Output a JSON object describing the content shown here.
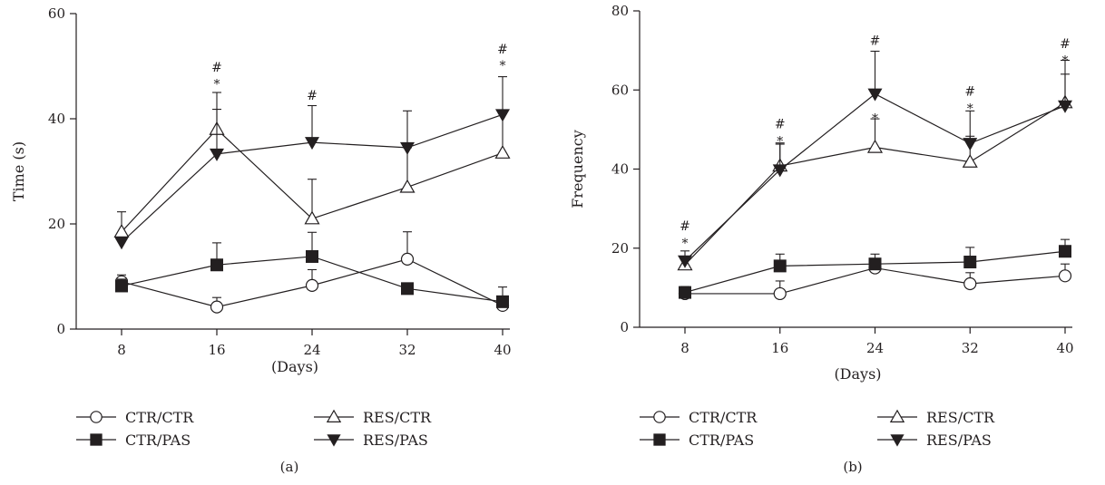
{
  "panels": [
    {
      "panel_label": "(a)",
      "legend": [
        "CTR/CTR",
        "CTR/PAS",
        "RES/CTR",
        "RES/PAS"
      ]
    },
    {
      "panel_label": "(b)",
      "legend": [
        "CTR/CTR",
        "CTR/PAS",
        "RES/CTR",
        "RES/PAS"
      ]
    }
  ],
  "chart_data": [
    {
      "type": "line",
      "panel": "(a)",
      "xlabel": "(Days)",
      "ylabel": "Time (s)",
      "x": [
        8,
        16,
        24,
        32,
        40
      ],
      "xticks": [
        "8",
        "16",
        "24",
        "32",
        "40"
      ],
      "ylim": [
        0,
        60
      ],
      "yticks": [
        "0",
        "20",
        "40",
        "60"
      ],
      "series": [
        {
          "name": "CTR/CTR",
          "marker": "open-circle",
          "values": [
            9,
            4.2,
            8.3,
            13.3,
            4.5
          ],
          "error": [
            1.3,
            1.8,
            3,
            5.2,
            1.5
          ]
        },
        {
          "name": "CTR/PAS",
          "marker": "filled-square",
          "values": [
            8.2,
            12.2,
            13.8,
            7.7,
            5.2
          ],
          "error": [
            1.3,
            4.2,
            4.6,
            0,
            2.8
          ]
        },
        {
          "name": "RES/CTR",
          "marker": "open-triangle-up",
          "values": [
            18.5,
            38,
            21,
            27,
            33.5
          ],
          "error": [
            3.8,
            3.8,
            7.5,
            7.5,
            7.5
          ]
        },
        {
          "name": "RES/PAS",
          "marker": "filled-triangle-down",
          "values": [
            16.5,
            33.3,
            35.5,
            34.5,
            40.8
          ],
          "error": [
            0,
            11.7,
            7,
            7,
            7.2
          ]
        }
      ],
      "annotations": [
        {
          "x": 16,
          "text": "*",
          "y": 47.5
        },
        {
          "x": 16,
          "text": "#",
          "y": 49.8
        },
        {
          "x": 24,
          "text": "#",
          "y": 44.5
        },
        {
          "x": 40,
          "text": "*",
          "y": 51
        },
        {
          "x": 40,
          "text": "#",
          "y": 53.3
        }
      ]
    },
    {
      "type": "line",
      "panel": "(b)",
      "xlabel": "(Days)",
      "ylabel": "Frequency",
      "x": [
        8,
        16,
        24,
        32,
        40
      ],
      "xticks": [
        "8",
        "16",
        "24",
        "32",
        "40"
      ],
      "ylim": [
        0,
        80
      ],
      "yticks": [
        "0",
        "20",
        "40",
        "60",
        "80"
      ],
      "series": [
        {
          "name": "CTR/CTR",
          "marker": "open-circle",
          "values": [
            8.5,
            8.5,
            15,
            11,
            13
          ],
          "error": [
            1.5,
            3.2,
            1.5,
            2.8,
            3
          ]
        },
        {
          "name": "CTR/PAS",
          "marker": "filled-square",
          "values": [
            8.8,
            15.5,
            16,
            16.5,
            19.2
          ],
          "error": [
            1.5,
            3,
            2.5,
            3.7,
            3
          ]
        },
        {
          "name": "RES/CTR",
          "marker": "open-triangle-up",
          "values": [
            15.8,
            40.8,
            45.5,
            41.8,
            56.8
          ],
          "error": [
            1.5,
            5.8,
            7.2,
            6.5,
            7.2
          ]
        },
        {
          "name": "RES/PAS",
          "marker": "filled-triangle-down",
          "values": [
            16.8,
            39.8,
            59,
            46.5,
            56
          ],
          "error": [
            2.5,
            6.5,
            10.8,
            8.2,
            11.5
          ]
        }
      ],
      "annotations": [
        {
          "x": 8,
          "text": "*",
          "y": 22.5
        },
        {
          "x": 8,
          "text": "#",
          "y": 25.7
        },
        {
          "x": 16,
          "text": "*",
          "y": 48.2
        },
        {
          "x": 16,
          "text": "#",
          "y": 51.5
        },
        {
          "x": 24,
          "text": "*",
          "y": 54
        },
        {
          "x": 24,
          "text": "#",
          "y": 72.5
        },
        {
          "x": 32,
          "text": "*",
          "y": 56.5
        },
        {
          "x": 32,
          "text": "#",
          "y": 59.7
        },
        {
          "x": 40,
          "text": "*",
          "y": 68.7
        },
        {
          "x": 40,
          "text": "#",
          "y": 71.8
        }
      ]
    }
  ]
}
